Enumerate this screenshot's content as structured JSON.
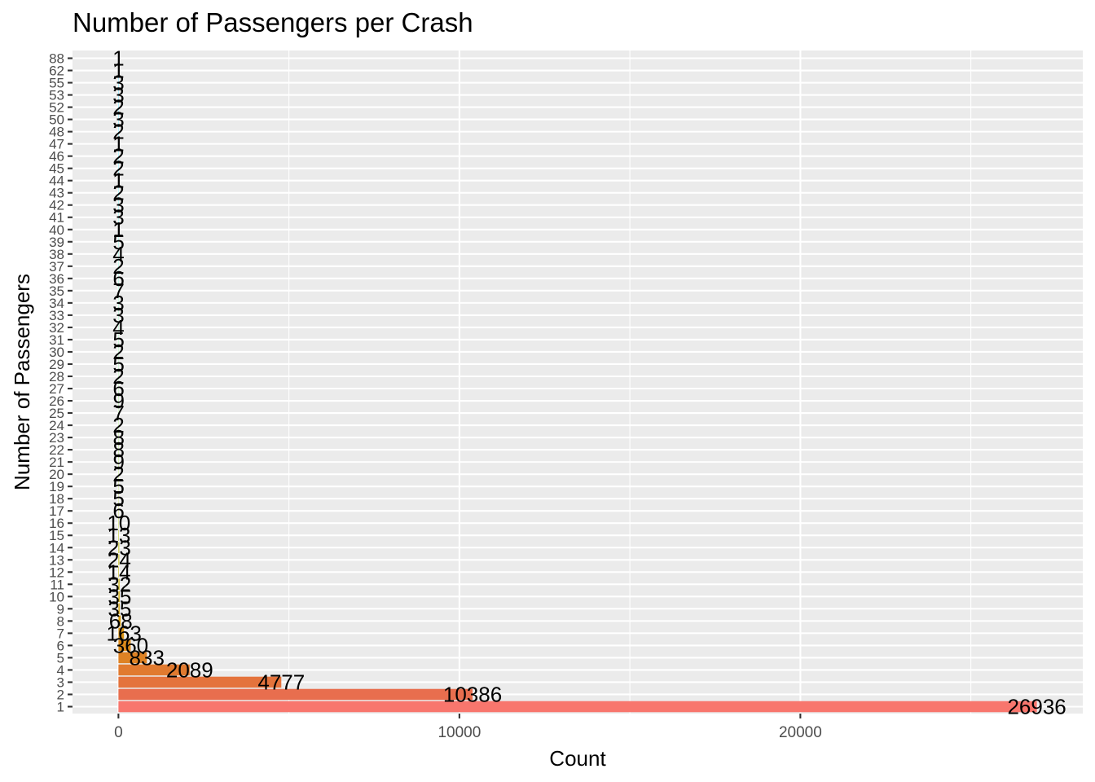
{
  "chart_data": {
    "type": "bar",
    "orientation": "horizontal",
    "title": "Number of Passengers per Crash",
    "xlabel": "Count",
    "ylabel": "Number of Passengers",
    "xlim": [
      -1347,
      28283
    ],
    "x_ticks": [
      0,
      10000,
      20000
    ],
    "x_tick_labels": [
      "0",
      "10000",
      "20000"
    ],
    "grid": true,
    "legend": "none",
    "categories": [
      "1",
      "2",
      "3",
      "4",
      "5",
      "6",
      "7",
      "8",
      "9",
      "10",
      "11",
      "12",
      "13",
      "14",
      "15",
      "16",
      "17",
      "18",
      "19",
      "20",
      "21",
      "22",
      "23",
      "24",
      "25",
      "26",
      "27",
      "28",
      "29",
      "30",
      "31",
      "32",
      "33",
      "34",
      "35",
      "36",
      "37",
      "38",
      "39",
      "40",
      "41",
      "42",
      "43",
      "44",
      "45",
      "46",
      "47",
      "48",
      "50",
      "52",
      "53",
      "55",
      "62",
      "88"
    ],
    "values": [
      26936,
      10386,
      4777,
      2089,
      833,
      360,
      163,
      68,
      35,
      35,
      32,
      14,
      24,
      23,
      13,
      10,
      6,
      5,
      5,
      2,
      9,
      8,
      8,
      2,
      7,
      9,
      6,
      2,
      5,
      2,
      5,
      4,
      3,
      3,
      7,
      6,
      2,
      4,
      5,
      1,
      3,
      3,
      2,
      1,
      2,
      2,
      1,
      2,
      3,
      2,
      3,
      3,
      1,
      1
    ],
    "bar_colors": [
      "#F8766D",
      "#E86E4E",
      "#E4733C",
      "#E17A2F",
      "#DE8224",
      "#DB8A1B",
      "#D89214",
      "#D49A0F",
      "#D0A10C",
      "#CCA80B",
      "#C8AE0B",
      "#C4B40D",
      "#C0BA10",
      "#BBBF15",
      "#B7C41A",
      "#B2C920",
      "#ADCD26",
      "#A9D12D",
      "#A4D534",
      "#9FD83B",
      "#9ADC42",
      "#95DF49",
      "#90E150",
      "#8BE358",
      "#86E55F",
      "#81E767",
      "#7CE96E",
      "#77EA76",
      "#72EB7E",
      "#6DEC86",
      "#68ED8E",
      "#63ED96",
      "#5EEE9E",
      "#59EEA6",
      "#54EEAE",
      "#4FEEB6",
      "#4AEEBE",
      "#45EDC6",
      "#40ECCD",
      "#3BEBD5",
      "#36EADC",
      "#31E8E3",
      "#2CE6EA",
      "#27E4F0",
      "#22E1F5",
      "#1DDEF9",
      "#18DBFC",
      "#13D8FE",
      "#0ED4FF",
      "#09D0FF",
      "#05CCFF",
      "#02C8FF",
      "#00C4FF",
      "#00BFC4"
    ]
  }
}
